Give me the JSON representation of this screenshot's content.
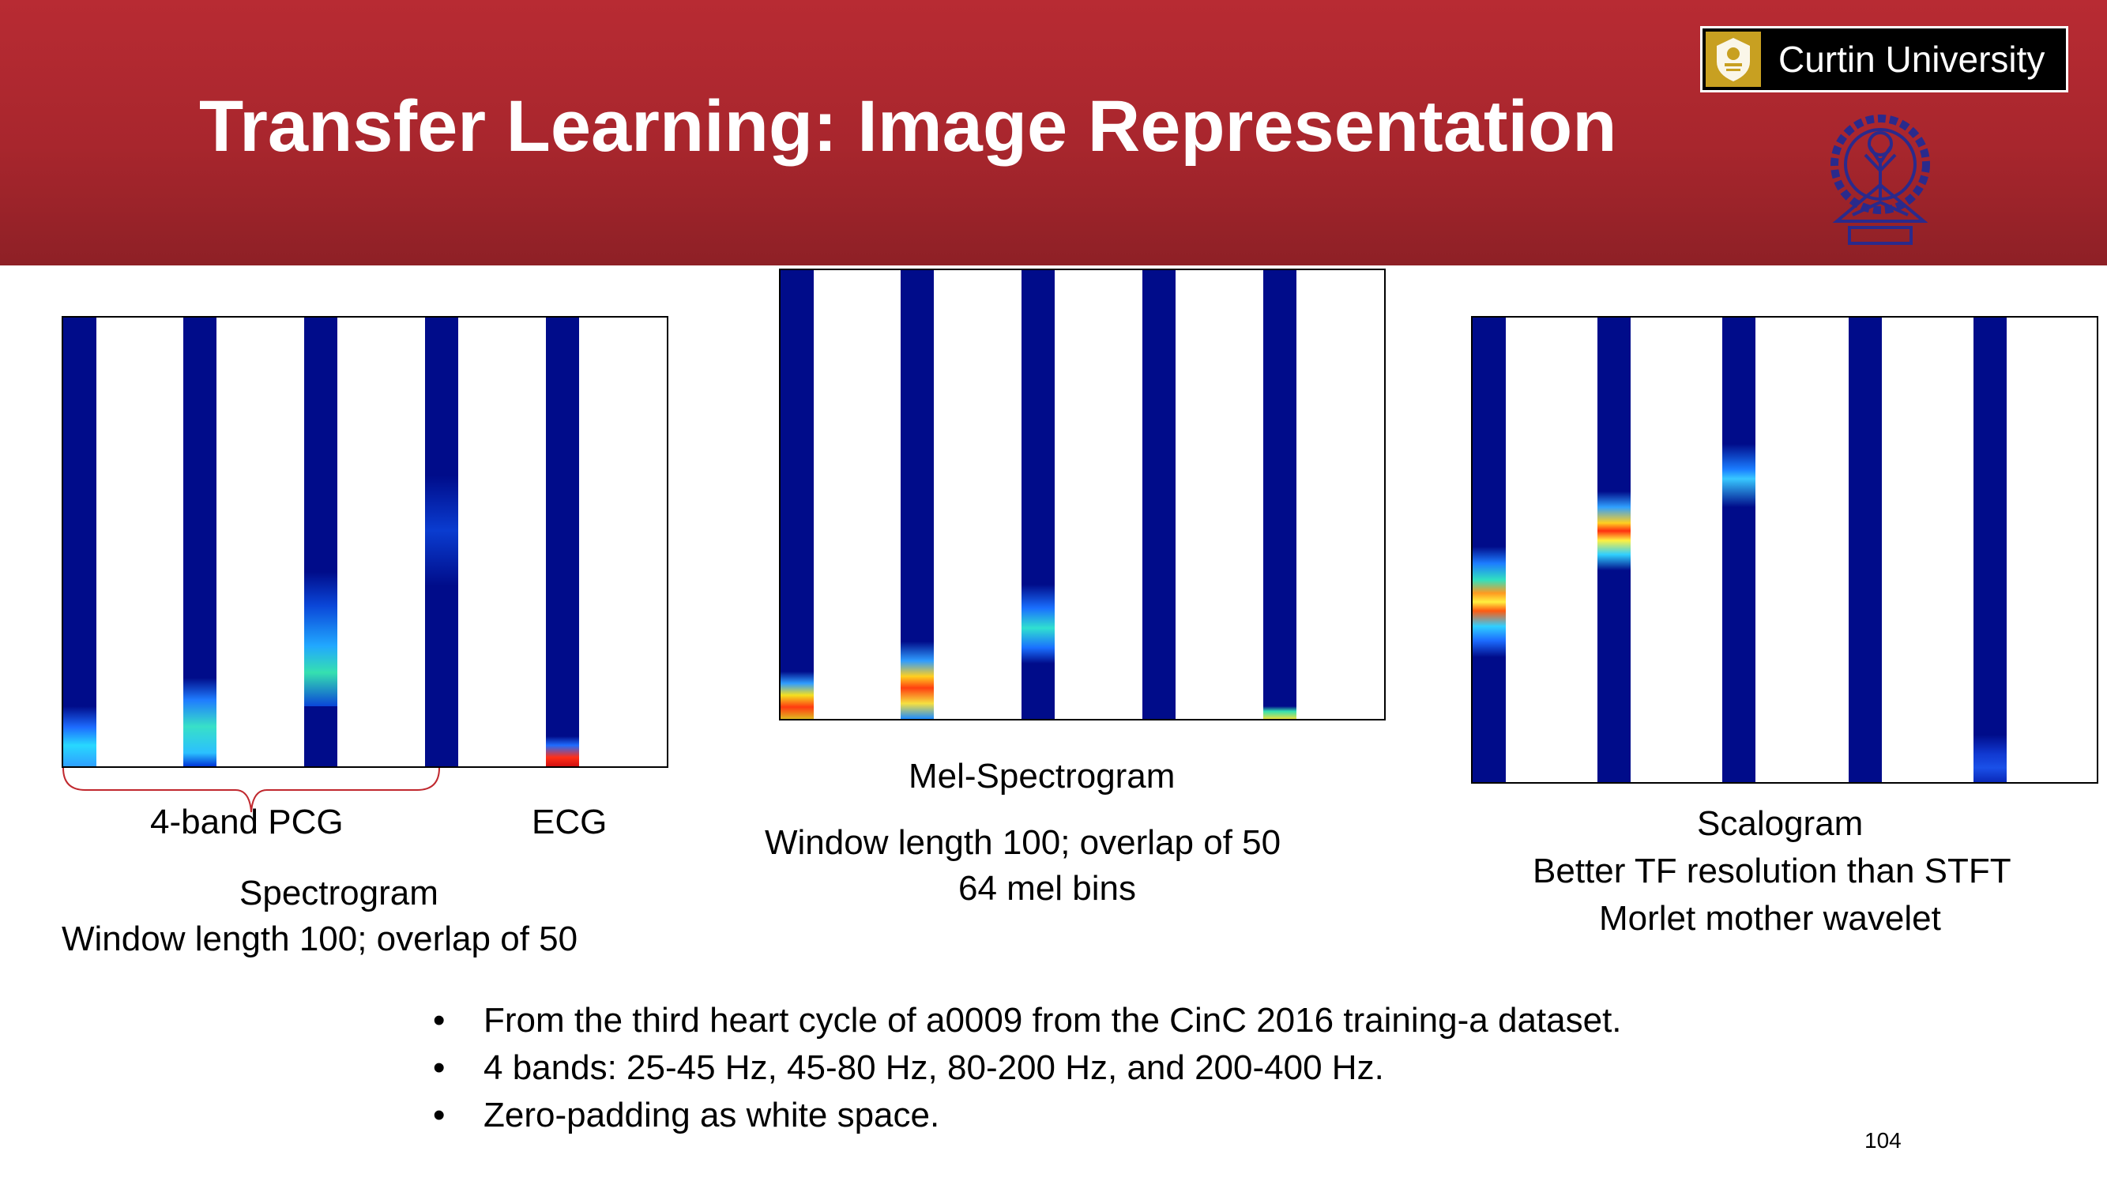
{
  "slide": {
    "title": "Transfer Learning: Image Representation",
    "page_number": "104"
  },
  "logos": {
    "curtin_text": "Curtin University",
    "curtin_crest_icon": "curtin-crest-icon",
    "seal_icon": "institute-seal-icon"
  },
  "panels": {
    "spectrogram": {
      "group_label_pcg": "4-band PCG",
      "label_ecg": "ECG",
      "caption_title": "Spectrogram",
      "caption_line1": "Window length 100; overlap of 50"
    },
    "mel": {
      "caption_title": "Mel-Spectrogram",
      "caption_line1": "Window length 100; overlap of 50",
      "caption_line2": "64 mel bins"
    },
    "scalogram": {
      "caption_title": "Scalogram",
      "caption_line1": "Better TF resolution than STFT",
      "caption_line2": "Morlet mother wavelet"
    }
  },
  "bullets": [
    "From the third heart cycle of a0009 from the CinC 2016 training-a dataset.",
    "4 bands: 25-45 Hz, 45-80 Hz, 80-200 Hz, and 200-400 Hz.",
    "Zero-padding as white space."
  ],
  "colors": {
    "header": "#b82b33",
    "heatmap_background": "#000c8a",
    "brace": "#c0282e"
  }
}
